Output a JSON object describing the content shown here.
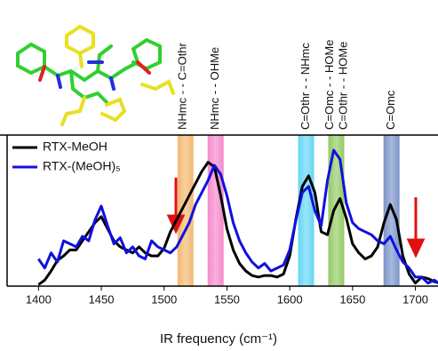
{
  "chart_data": {
    "type": "line",
    "xlabel": "IR frequency (cm⁻¹)",
    "xlim": [
      1375,
      1718
    ],
    "xticks": [
      1400,
      1450,
      1500,
      1550,
      1600,
      1650,
      1700
    ],
    "ylim": [
      0,
      1
    ],
    "legend": "upper left",
    "bands": [
      {
        "x": 1517,
        "color": "#f0a040"
      },
      {
        "x": 1541,
        "color": "#f060b8"
      },
      {
        "x": 1613,
        "color": "#30c8f0"
      },
      {
        "x": 1637,
        "color": "#70b830"
      },
      {
        "x": 1681,
        "color": "#5070b8"
      }
    ],
    "annotations": [
      {
        "x": 1515,
        "text": "NHmc - - C=Othr"
      },
      {
        "x": 1541,
        "text": "NHmc - - OHMe"
      },
      {
        "x": 1613,
        "text": "C=Othr - - NHmc"
      },
      {
        "x": 1632,
        "text": "C=Omc - - HOMe"
      },
      {
        "x": 1643,
        "text": "C=Othr - - HOMe"
      },
      {
        "x": 1681,
        "text": "C=Omc"
      }
    ],
    "x": [
      1400,
      1405,
      1410,
      1415,
      1420,
      1425,
      1430,
      1435,
      1440,
      1445,
      1450,
      1455,
      1460,
      1465,
      1470,
      1475,
      1480,
      1485,
      1490,
      1495,
      1500,
      1505,
      1510,
      1515,
      1520,
      1525,
      1530,
      1535,
      1540,
      1545,
      1550,
      1555,
      1560,
      1565,
      1570,
      1575,
      1580,
      1585,
      1590,
      1595,
      1600,
      1605,
      1610,
      1615,
      1620,
      1625,
      1630,
      1635,
      1640,
      1645,
      1650,
      1655,
      1660,
      1665,
      1670,
      1675,
      1680,
      1685,
      1690,
      1695,
      1700,
      1705,
      1710,
      1715,
      1720
    ],
    "series": [
      {
        "name": "RTX-MeOH",
        "color": "#000000",
        "values": [
          0.01,
          0.04,
          0.1,
          0.17,
          0.2,
          0.24,
          0.24,
          0.3,
          0.36,
          0.42,
          0.46,
          0.38,
          0.3,
          0.26,
          0.24,
          0.22,
          0.26,
          0.22,
          0.2,
          0.2,
          0.25,
          0.36,
          0.44,
          0.52,
          0.6,
          0.68,
          0.76,
          0.82,
          0.79,
          0.6,
          0.38,
          0.24,
          0.15,
          0.1,
          0.07,
          0.06,
          0.07,
          0.07,
          0.06,
          0.08,
          0.2,
          0.45,
          0.66,
          0.73,
          0.62,
          0.36,
          0.34,
          0.5,
          0.58,
          0.45,
          0.28,
          0.22,
          0.18,
          0.2,
          0.26,
          0.42,
          0.54,
          0.44,
          0.2,
          0.08,
          0.02,
          0.06,
          0.05,
          0.03,
          0.02
        ]
      },
      {
        "name": "RTX-(MeOH)₅",
        "color": "#1010e0",
        "values": [
          0.18,
          0.12,
          0.22,
          0.16,
          0.3,
          0.28,
          0.26,
          0.33,
          0.3,
          0.44,
          0.53,
          0.4,
          0.28,
          0.32,
          0.22,
          0.26,
          0.2,
          0.18,
          0.3,
          0.26,
          0.24,
          0.22,
          0.26,
          0.34,
          0.42,
          0.54,
          0.62,
          0.7,
          0.8,
          0.74,
          0.6,
          0.42,
          0.3,
          0.22,
          0.16,
          0.12,
          0.15,
          0.1,
          0.12,
          0.14,
          0.24,
          0.44,
          0.62,
          0.66,
          0.5,
          0.4,
          0.7,
          0.9,
          0.84,
          0.55,
          0.42,
          0.38,
          0.36,
          0.34,
          0.3,
          0.28,
          0.33,
          0.24,
          0.16,
          0.12,
          0.06,
          0.06,
          0.02,
          0.04,
          0.01
        ]
      }
    ]
  }
}
